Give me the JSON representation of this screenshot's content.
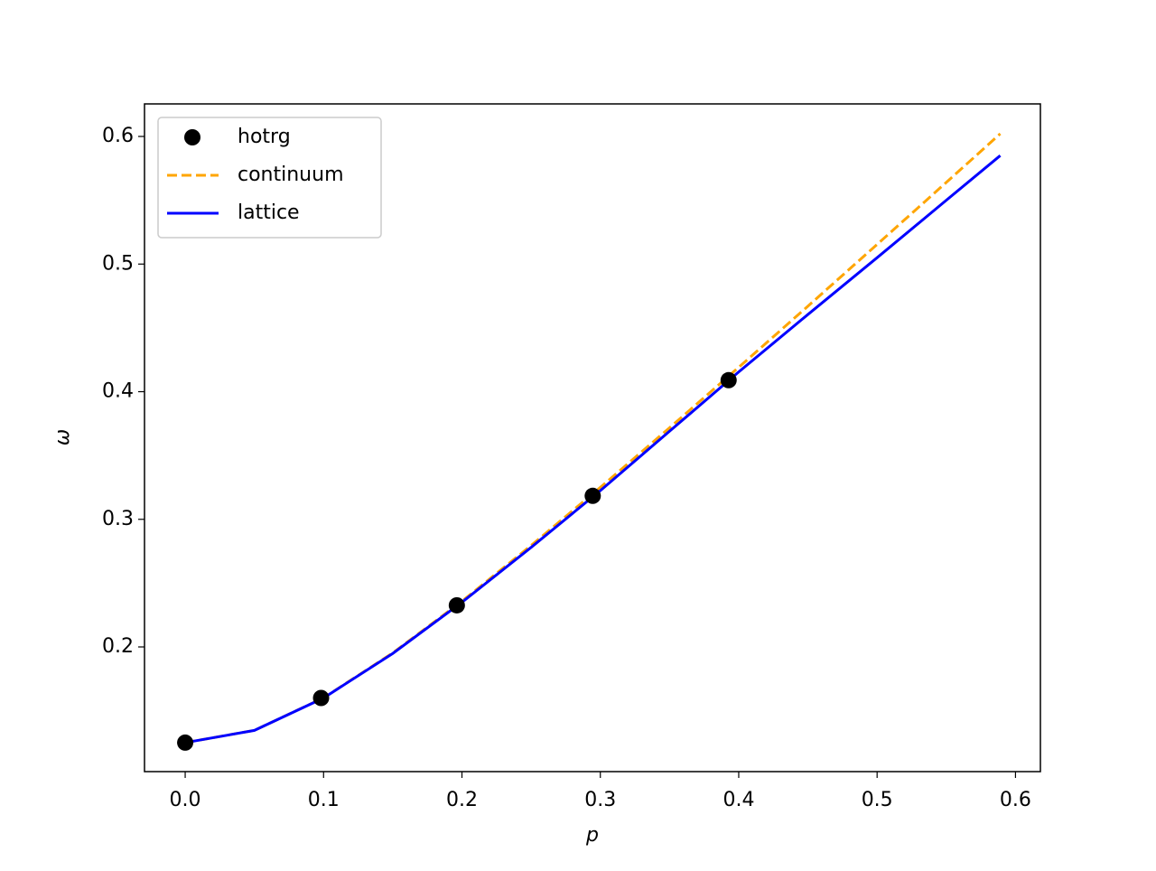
{
  "chart_data": {
    "type": "line",
    "x_label": "p",
    "y_label": "ω",
    "xlim": [
      -0.0294,
      0.618
    ],
    "ylim": [
      0.1023,
      0.6255
    ],
    "xticks": [
      {
        "value": 0,
        "label": "0.0"
      },
      0.1,
      0.2,
      0.3,
      0.4,
      0.5,
      0.6
    ],
    "yticks": [
      0.2,
      0.3,
      0.4,
      0.5,
      0.6
    ],
    "legend": "upper left",
    "series": [
      {
        "name": "hotrg",
        "color": "#000000",
        "style": "markers",
        "x": [
          0,
          0.0982,
          0.1963,
          0.2945,
          0.3927
        ],
        "values": [
          0.125,
          0.16,
          0.2326,
          0.3184,
          0.409
        ]
      },
      {
        "name": "continuum",
        "color": "#ffa500",
        "style": "dashed",
        "x": [
          0,
          0.05,
          0.1,
          0.15,
          0.2,
          0.25,
          0.3,
          0.35,
          0.4,
          0.45,
          0.5,
          0.55,
          0.589
        ],
        "values": [
          0.125,
          0.1346,
          0.1601,
          0.1953,
          0.2358,
          0.2795,
          0.325,
          0.3717,
          0.4191,
          0.467,
          0.5154,
          0.564,
          0.6021
        ]
      },
      {
        "name": "lattice",
        "color": "#0000ff",
        "style": "solid",
        "x": [
          0,
          0.05,
          0.1,
          0.15,
          0.2,
          0.25,
          0.3,
          0.35,
          0.4,
          0.45,
          0.5,
          0.55,
          0.589
        ],
        "values": [
          0.125,
          0.1346,
          0.16,
          0.1949,
          0.235,
          0.278,
          0.3225,
          0.369,
          0.4155,
          0.4605,
          0.505,
          0.55,
          0.585
        ]
      }
    ]
  }
}
